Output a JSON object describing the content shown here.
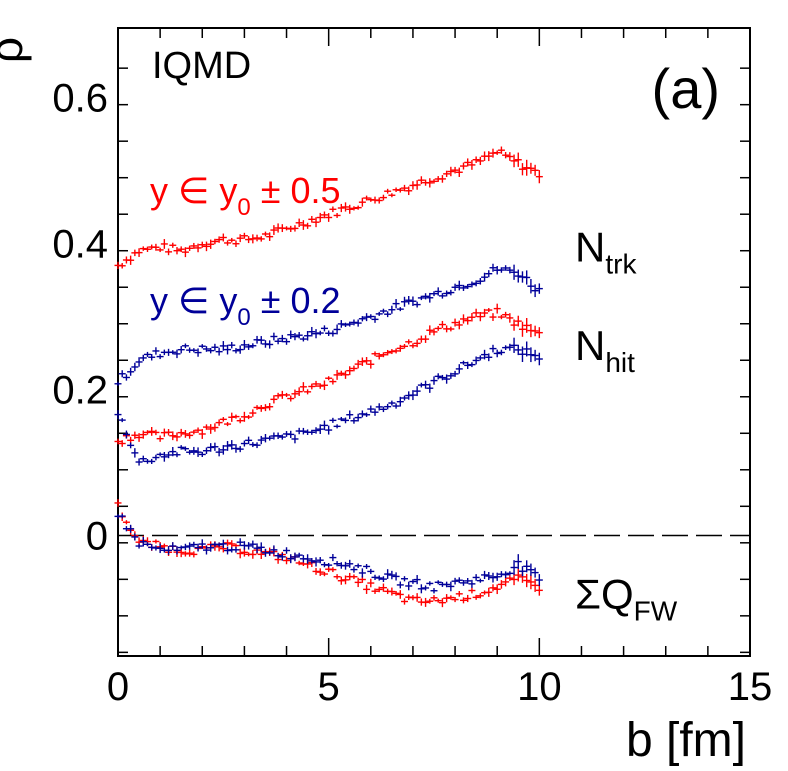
{
  "chart_data": {
    "type": "scatter",
    "title": "IQMD",
    "panel_label": "(a)",
    "xlabel": "b  [fm]",
    "ylabel": "ρ",
    "xlim": [
      0,
      15
    ],
    "ylim": [
      -0.165,
      0.695
    ],
    "xticks": [
      0,
      5,
      10,
      15
    ],
    "xtick_labels": [
      "0",
      "5",
      "10",
      "15"
    ],
    "yticks": [
      0,
      0.2,
      0.4,
      0.6
    ],
    "ytick_labels": [
      "0",
      "0.2",
      "0.4",
      "0.6"
    ],
    "reference_line_y": 0,
    "colors": {
      "red": "#ff0000",
      "blue": "#000099",
      "black": "#000000"
    },
    "legend": [
      {
        "id": "red",
        "prefix": "y ∈ y",
        "sub": "0",
        "suffix": " ± 0.5",
        "color": "#ff0000"
      },
      {
        "id": "blue",
        "prefix": "y ∈ y",
        "sub": "0",
        "suffix": " ± 0.2",
        "color": "#000099"
      }
    ],
    "annotations": [
      {
        "main": "N",
        "sub": "trk",
        "at_y": 0.4
      },
      {
        "main": "N",
        "sub": "hit",
        "at_y": 0.265
      },
      {
        "main": "ΣQ",
        "sub": "FW",
        "at_y": -0.075
      }
    ],
    "series": [
      {
        "name": "N_trk, y∈y0±0.5",
        "color": "#ff0000",
        "x": [
          0,
          0.5,
          1,
          1.5,
          2,
          2.5,
          3,
          3.5,
          4,
          4.5,
          5,
          5.5,
          6,
          6.5,
          7,
          7.5,
          8,
          8.5,
          9,
          9.5,
          10
        ],
        "y": [
          0.37,
          0.39,
          0.395,
          0.39,
          0.4,
          0.405,
          0.405,
          0.41,
          0.42,
          0.43,
          0.44,
          0.45,
          0.46,
          0.47,
          0.48,
          0.49,
          0.5,
          0.51,
          0.525,
          0.51,
          0.495
        ]
      },
      {
        "name": "N_trk, y∈y0±0.2",
        "color": "#000099",
        "x": [
          0,
          0.5,
          1,
          1.5,
          2,
          2.5,
          3,
          3.5,
          4,
          4.5,
          5,
          5.5,
          6,
          6.5,
          7,
          7.5,
          8,
          8.5,
          9,
          9.5,
          10
        ],
        "y": [
          0.21,
          0.24,
          0.25,
          0.255,
          0.255,
          0.255,
          0.26,
          0.265,
          0.27,
          0.275,
          0.28,
          0.29,
          0.3,
          0.31,
          0.32,
          0.33,
          0.34,
          0.35,
          0.365,
          0.36,
          0.335
        ]
      },
      {
        "name": "N_hit, y∈y0±0.5",
        "color": "#ff0000",
        "x": [
          0,
          0.5,
          1,
          1.5,
          2,
          2.5,
          3,
          3.5,
          4,
          4.5,
          5,
          5.5,
          6,
          6.5,
          7,
          7.5,
          8,
          8.5,
          9,
          9.5,
          10
        ],
        "y": [
          0.13,
          0.14,
          0.135,
          0.14,
          0.145,
          0.155,
          0.165,
          0.18,
          0.19,
          0.2,
          0.21,
          0.225,
          0.24,
          0.255,
          0.265,
          0.28,
          0.29,
          0.3,
          0.305,
          0.29,
          0.275
        ]
      },
      {
        "name": "N_hit, y∈y0±0.2",
        "color": "#000099",
        "x": [
          0,
          0.5,
          1,
          1.5,
          2,
          2.5,
          3,
          3.5,
          4,
          4.5,
          5,
          5.5,
          6,
          6.5,
          7,
          7.5,
          8,
          8.5,
          9,
          9.5,
          10
        ],
        "y": [
          0.17,
          0.1,
          0.11,
          0.115,
          0.115,
          0.12,
          0.125,
          0.13,
          0.135,
          0.14,
          0.15,
          0.16,
          0.17,
          0.18,
          0.195,
          0.21,
          0.225,
          0.24,
          0.255,
          0.255,
          0.245
        ]
      },
      {
        "name": "ΣQ_FW, y∈y0±0.5",
        "color": "#ff0000",
        "x": [
          0,
          0.5,
          1,
          1.5,
          2,
          2.5,
          3,
          3.5,
          4,
          4.5,
          5,
          5.5,
          6,
          6.5,
          7,
          7.5,
          8,
          8.5,
          9,
          9.5,
          10
        ],
        "y": [
          0.04,
          -0.01,
          -0.015,
          -0.02,
          -0.02,
          -0.015,
          -0.02,
          -0.025,
          -0.03,
          -0.04,
          -0.05,
          -0.06,
          -0.07,
          -0.08,
          -0.09,
          -0.09,
          -0.085,
          -0.08,
          -0.07,
          -0.06,
          -0.07
        ]
      },
      {
        "name": "ΣQ_FW, y∈y0±0.2",
        "color": "#000099",
        "x": [
          0,
          0.5,
          1,
          1.5,
          2,
          2.5,
          3,
          3.5,
          4,
          4.5,
          5,
          5.5,
          6,
          6.5,
          7,
          7.5,
          8,
          8.5,
          9,
          9.5,
          10
        ],
        "y": [
          0.03,
          -0.01,
          -0.02,
          -0.02,
          -0.015,
          -0.015,
          -0.015,
          -0.02,
          -0.025,
          -0.03,
          -0.035,
          -0.04,
          -0.05,
          -0.06,
          -0.065,
          -0.07,
          -0.065,
          -0.06,
          -0.055,
          -0.04,
          -0.06
        ]
      }
    ]
  }
}
